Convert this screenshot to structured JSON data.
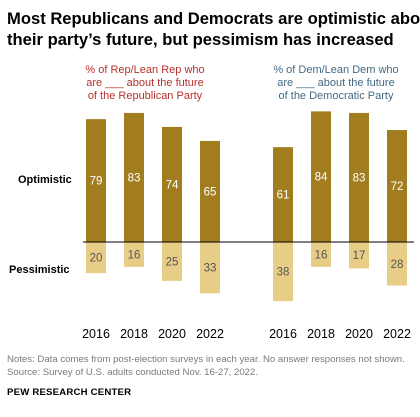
{
  "title_lines": [
    "Most Republicans and Democrats are optimistic about",
    "their party’s future, but pessimism has increased"
  ],
  "colors": {
    "optimistic": "#a17d1f",
    "pessimistic": "#e8cd86",
    "rep_label": "#b7312c",
    "dem_label": "#436983"
  },
  "row_labels": {
    "optimistic": "Optimistic",
    "pessimistic": "Pessimistic"
  },
  "chart_data": [
    {
      "type": "bar",
      "panel": "rep",
      "label_lines": [
        "% of Rep/Lean Rep who",
        "are ___ about the future",
        "of the Republican Party"
      ],
      "categories": [
        "2016",
        "2018",
        "2020",
        "2022"
      ],
      "series": [
        {
          "name": "Optimistic",
          "values": [
            79,
            83,
            74,
            65
          ]
        },
        {
          "name": "Pessimistic",
          "values": [
            20,
            16,
            25,
            33
          ]
        }
      ]
    },
    {
      "type": "bar",
      "panel": "dem",
      "label_lines": [
        "% of Dem/Lean Dem who",
        "are ___ about the future",
        "of the Democratic Party"
      ],
      "categories": [
        "2016",
        "2018",
        "2020",
        "2022"
      ],
      "series": [
        {
          "name": "Optimistic",
          "values": [
            61,
            84,
            83,
            72
          ]
        },
        {
          "name": "Pessimistic",
          "values": [
            38,
            16,
            17,
            28
          ]
        }
      ]
    }
  ],
  "notes": [
    "Notes: Data comes from post-election surveys in each year. No answer responses not shown.",
    "Source: Survey of U.S. adults conducted Nov. 16-27, 2022."
  ],
  "source_org": "PEW RESEARCH CENTER"
}
